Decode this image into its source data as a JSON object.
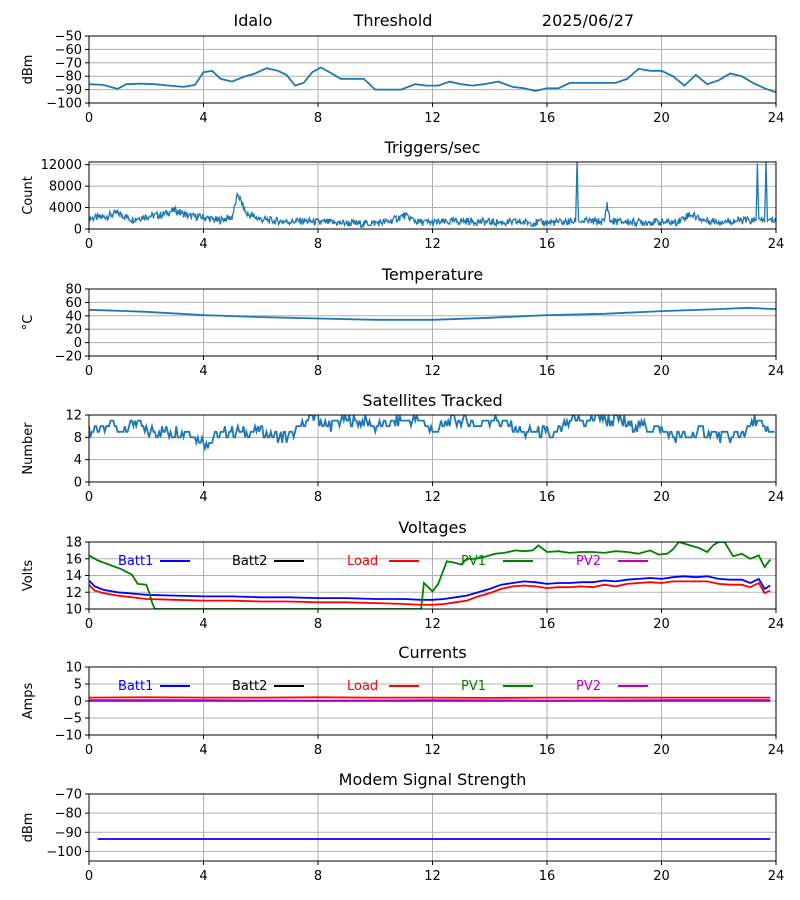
{
  "header": {
    "station": "Idalo",
    "mode": "Threshold",
    "date": "2025/06/27"
  },
  "colors": {
    "series": "#1f77b4",
    "batt1": "#0000ff",
    "batt2": "#000000",
    "load": "#ff0000",
    "pv1": "#008000",
    "pv2": "#bf00bf",
    "grid": "#b0b0b0"
  },
  "legend_labels": [
    "Batt1",
    "Batt2",
    "Load",
    "PV1",
    "PV2"
  ],
  "chart_data": [
    {
      "id": "noise",
      "type": "line",
      "title": "",
      "ylabel": "dBm",
      "xlim": [
        0,
        24
      ],
      "xticks": [
        0,
        4,
        8,
        12,
        16,
        20,
        24
      ],
      "ylim": [
        -100,
        -50
      ],
      "yticks": [
        -100,
        -90,
        -80,
        -70,
        -60,
        -50
      ],
      "grid": true,
      "series": [
        {
          "x": [
            0,
            0.5,
            1,
            1.3,
            1.8,
            2.3,
            2.8,
            3.3,
            3.7,
            4,
            4.3,
            4.6,
            5,
            5.4,
            5.8,
            6.2,
            6.6,
            6.9,
            7.2,
            7.5,
            7.8,
            8.1,
            8.4,
            8.8,
            9.2,
            9.6,
            10,
            10.4,
            10.9,
            11.4,
            11.8,
            12.2,
            12.6,
            13,
            13.4,
            13.8,
            14.3,
            14.8,
            15.2,
            15.6,
            16,
            16.4,
            16.8,
            17.2,
            17.6,
            18,
            18.4,
            18.8,
            19.2,
            19.6,
            20,
            20.4,
            20.8,
            21.2,
            21.6,
            22,
            22.4,
            22.8,
            23.2,
            23.6,
            24
          ],
          "y": [
            -86,
            -86.5,
            -89.5,
            -86,
            -85.5,
            -86,
            -87,
            -88,
            -86.5,
            -77,
            -76,
            -82,
            -84,
            -80.5,
            -78,
            -74,
            -76,
            -79,
            -87,
            -85,
            -77,
            -73.5,
            -77,
            -82,
            -82,
            -82,
            -90,
            -90,
            -90,
            -86,
            -87,
            -87,
            -84,
            -86,
            -87,
            -86,
            -84,
            -88,
            -89,
            -91,
            -89,
            -89,
            -85,
            -85,
            -85,
            -85,
            -85,
            -82,
            -74.5,
            -76,
            -76,
            -80,
            -87,
            -79,
            -86,
            -83,
            -78,
            -80,
            -85,
            -89,
            -92
          ]
        }
      ]
    },
    {
      "id": "triggers",
      "type": "line",
      "title": "Triggers/sec",
      "ylabel": "Count",
      "xlim": [
        0,
        24
      ],
      "xticks": [
        0,
        4,
        8,
        12,
        16,
        20,
        24
      ],
      "ylim": [
        0,
        12500
      ],
      "yticks": [
        0,
        4000,
        8000,
        12000
      ],
      "grid": true,
      "series": [
        {
          "x": [
            0,
            0.5,
            1,
            1.5,
            2,
            2.5,
            3,
            3.5,
            4,
            4.5,
            5,
            5.2,
            5.5,
            6,
            6.5,
            7,
            7.5,
            8,
            8.5,
            9,
            9.5,
            10,
            10.5,
            11,
            11.5,
            12,
            12.5,
            13,
            13.5,
            14,
            14.5,
            15,
            15.5,
            16,
            16.5,
            17,
            17.05,
            17.1,
            17.5,
            18,
            18.1,
            18.2,
            18.5,
            19,
            19.5,
            20,
            20.5,
            21,
            21.5,
            22,
            22.5,
            23,
            23.3,
            23.35,
            23.4,
            23.6,
            23.65,
            23.7,
            24
          ],
          "y": [
            2000,
            2200,
            3000,
            1800,
            2400,
            2600,
            3500,
            2400,
            2200,
            1600,
            2200,
            6500,
            2800,
            1800,
            1500,
            1400,
            1500,
            1300,
            1200,
            1100,
            1000,
            1100,
            1400,
            2500,
            1300,
            1200,
            1300,
            1500,
            1400,
            1300,
            1200,
            1300,
            1200,
            1200,
            1300,
            1400,
            12500,
            1500,
            1400,
            1400,
            4800,
            1500,
            1400,
            1300,
            1300,
            1300,
            1200,
            2800,
            1600,
            1400,
            1500,
            1600,
            1400,
            12500,
            1500,
            1600,
            12500,
            1500,
            1800
          ],
          "noise_amplitude": 700
        }
      ]
    },
    {
      "id": "temperature",
      "type": "line",
      "title": "Temperature",
      "ylabel": "°C",
      "xlim": [
        0,
        24
      ],
      "xticks": [
        0,
        4,
        8,
        12,
        16,
        20,
        24
      ],
      "ylim": [
        -20,
        80
      ],
      "yticks": [
        -20,
        0,
        20,
        40,
        60,
        80
      ],
      "grid": true,
      "series": [
        {
          "x": [
            0,
            2,
            4,
            6,
            8,
            10,
            12,
            14,
            16,
            18,
            20,
            22,
            23,
            24
          ],
          "y": [
            49,
            46,
            41,
            38,
            36,
            34,
            34,
            37,
            41,
            43,
            47,
            50,
            52,
            50
          ]
        }
      ]
    },
    {
      "id": "satellites",
      "type": "line",
      "title": "Satellites Tracked",
      "ylabel": "Number",
      "xlim": [
        0,
        24
      ],
      "xticks": [
        0,
        4,
        8,
        12,
        16,
        20,
        24
      ],
      "ylim": [
        0,
        12
      ],
      "yticks": [
        0,
        4,
        8,
        12
      ],
      "grid": true,
      "series": [
        {
          "x": [
            0,
            0.3,
            0.6,
            0.8,
            1,
            1.3,
            1.6,
            2,
            2.5,
            3,
            3.4,
            3.8,
            4.1,
            4.4,
            4.8,
            5.2,
            5.6,
            6,
            6.5,
            6.9,
            7.2,
            7.6,
            7.9,
            8.3,
            8.7,
            9.1,
            9.6,
            10,
            10.4,
            10.9,
            11.3,
            11.7,
            12,
            12.3,
            12.7,
            13.1,
            13.5,
            13.9,
            14.3,
            14.7,
            15.1,
            15.5,
            15.9,
            16.2,
            16.6,
            17,
            17.4,
            17.8,
            18.2,
            18.6,
            19,
            19.4,
            19.8,
            20.1,
            20.5,
            20.9,
            21.3,
            21.7,
            22.1,
            22.5,
            22.9,
            23.3,
            23.7,
            24
          ],
          "y": [
            9,
            10,
            9,
            11,
            9,
            10,
            11,
            9,
            9,
            9,
            9,
            8,
            7,
            8,
            9,
            9,
            9,
            9,
            8,
            8,
            9,
            11,
            12,
            10,
            11,
            11,
            11,
            10,
            10,
            11,
            11,
            11,
            9,
            10,
            11,
            11,
            10,
            11,
            11,
            10,
            9,
            9,
            9,
            8,
            10,
            11,
            11,
            12,
            11,
            11,
            10,
            10,
            10,
            9,
            8,
            8,
            9,
            9,
            8,
            8,
            9,
            11,
            9,
            9
          ],
          "noise_amplitude": 1
        }
      ]
    },
    {
      "id": "voltages",
      "type": "line",
      "title": "Voltages",
      "ylabel": "Volts",
      "xlim": [
        0,
        24
      ],
      "xticks": [
        0,
        4,
        8,
        12,
        16,
        20,
        24
      ],
      "ylim": [
        10,
        18
      ],
      "yticks": [
        10,
        12,
        14,
        16,
        18
      ],
      "grid": true,
      "legend": "top-left",
      "series": [
        {
          "name": "Batt1",
          "x": [
            0,
            0.2,
            0.5,
            1,
            2,
            3,
            4,
            5,
            6,
            7,
            8,
            9,
            10,
            11,
            11.6,
            12,
            12.4,
            12.8,
            13.2,
            13.6,
            14,
            14.4,
            14.8,
            15.2,
            15.6,
            16,
            16.4,
            16.8,
            17.2,
            17.6,
            18,
            18.4,
            18.8,
            19.2,
            19.6,
            20,
            20.4,
            20.8,
            21.2,
            21.6,
            22,
            22.4,
            22.8,
            23.1,
            23.4,
            23.6,
            23.8
          ],
          "y": [
            13.4,
            12.7,
            12.3,
            12.0,
            11.7,
            11.6,
            11.5,
            11.5,
            11.4,
            11.4,
            11.3,
            11.3,
            11.2,
            11.2,
            11.1,
            11.1,
            11.2,
            11.4,
            11.6,
            12.0,
            12.4,
            12.9,
            13.1,
            13.3,
            13.2,
            13.0,
            13.1,
            13.1,
            13.2,
            13.2,
            13.4,
            13.3,
            13.5,
            13.6,
            13.7,
            13.6,
            13.8,
            13.9,
            13.8,
            13.9,
            13.6,
            13.5,
            13.5,
            13.1,
            13.6,
            12.4,
            12.8
          ]
        },
        {
          "name": "Load",
          "x": [
            0,
            0.2,
            0.5,
            1,
            2,
            3,
            4,
            5,
            6,
            7,
            8,
            9,
            10,
            11,
            11.6,
            12,
            12.4,
            12.8,
            13.2,
            13.6,
            14,
            14.4,
            14.8,
            15.2,
            15.6,
            16,
            16.4,
            16.8,
            17.2,
            17.6,
            18,
            18.4,
            18.8,
            19.2,
            19.6,
            20,
            20.4,
            20.8,
            21.2,
            21.6,
            22,
            22.4,
            22.8,
            23.1,
            23.4,
            23.6,
            23.8
          ],
          "y": [
            12.9,
            12.2,
            11.9,
            11.6,
            11.2,
            11.1,
            11.0,
            11.0,
            10.9,
            10.9,
            10.8,
            10.8,
            10.7,
            10.6,
            10.5,
            10.5,
            10.6,
            10.8,
            11.0,
            11.5,
            11.9,
            12.4,
            12.7,
            12.8,
            12.7,
            12.5,
            12.6,
            12.6,
            12.7,
            12.6,
            12.9,
            12.7,
            13.0,
            13.1,
            13.2,
            13.1,
            13.3,
            13.3,
            13.3,
            13.3,
            13.0,
            12.9,
            12.9,
            12.6,
            13.1,
            11.9,
            12.2
          ]
        },
        {
          "name": "PV1",
          "x": [
            0,
            0.3,
            0.7,
            1.1,
            1.5,
            1.7,
            2.0,
            2.1,
            2.2,
            2.3,
            11.6,
            11.7,
            12.0,
            12.2,
            12.5,
            12.8,
            13.0,
            13.2,
            13.5,
            13.9,
            14.2,
            14.5,
            14.9,
            15.2,
            15.5,
            15.7,
            16.0,
            16.4,
            16.8,
            17.2,
            17.6,
            18.0,
            18.4,
            18.8,
            19.2,
            19.6,
            19.9,
            20.2,
            20.4,
            20.6,
            21.0,
            21.3,
            21.6,
            21.8,
            22.0,
            22.2,
            22.5,
            22.8,
            23.1,
            23.4,
            23.6,
            23.8
          ],
          "y": [
            16.4,
            15.8,
            15.3,
            14.8,
            14.1,
            13.0,
            12.9,
            12.0,
            10.8,
            10,
            10,
            13.1,
            12.1,
            13.0,
            15.7,
            15.5,
            15.3,
            16.0,
            16.0,
            16.3,
            16.6,
            16.7,
            17.0,
            16.9,
            17.0,
            17.6,
            16.8,
            16.9,
            16.7,
            16.8,
            16.8,
            16.7,
            16.9,
            16.8,
            16.6,
            17.0,
            16.5,
            16.6,
            17.1,
            18.0,
            17.6,
            17.3,
            16.8,
            17.6,
            18.0,
            18.0,
            16.3,
            16.6,
            16.0,
            16.4,
            15.0,
            15.9
          ]
        }
      ]
    },
    {
      "id": "currents",
      "type": "line",
      "title": "Currents",
      "ylabel": "Amps",
      "xlim": [
        0,
        24
      ],
      "xticks": [
        0,
        4,
        8,
        12,
        16,
        20,
        24
      ],
      "ylim": [
        -10,
        10
      ],
      "yticks": [
        -10,
        -5,
        0,
        5,
        10
      ],
      "grid": true,
      "legend": "top-left",
      "series": [
        {
          "name": "Batt1",
          "x": [
            0,
            4,
            8,
            12,
            16,
            20,
            23.8
          ],
          "y": [
            0.2,
            0.2,
            0.1,
            0.2,
            0.1,
            0.2,
            0.2
          ]
        },
        {
          "name": "Load",
          "x": [
            0,
            2,
            4,
            6,
            8,
            10,
            12,
            14,
            16,
            18,
            20,
            22,
            23.8
          ],
          "y": [
            1.0,
            1.1,
            1.0,
            1.0,
            1.1,
            1.0,
            1.0,
            0.9,
            1.0,
            1.0,
            1.0,
            1.0,
            1.0
          ]
        },
        {
          "name": "PV2",
          "x": [
            0,
            4,
            8,
            12,
            16,
            20,
            23.8
          ],
          "y": [
            0,
            0,
            0,
            0,
            0,
            0,
            0
          ]
        }
      ]
    },
    {
      "id": "modem",
      "type": "line",
      "title": "Modem Signal Strength",
      "ylabel": "dBm",
      "xlim": [
        0,
        24
      ],
      "xticks": [
        0,
        4,
        8,
        12,
        16,
        20,
        24
      ],
      "ylim": [
        -105,
        -70
      ],
      "yticks": [
        -100,
        -90,
        -80,
        -70
      ],
      "grid": true,
      "series": [
        {
          "x": [
            0.3,
            23.8
          ],
          "y": [
            -93.5,
            -93.5
          ]
        }
      ]
    }
  ]
}
